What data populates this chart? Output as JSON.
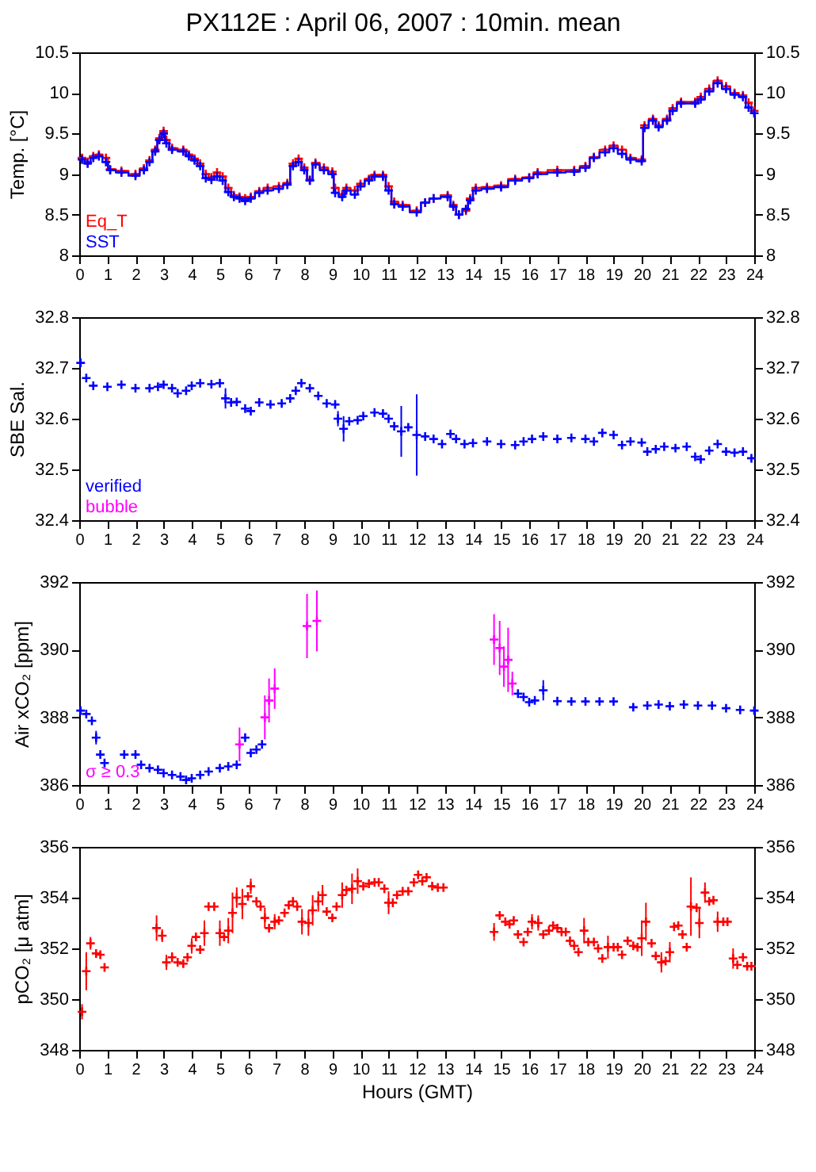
{
  "chart_data": [
    {
      "type": "step",
      "title": "PX112E : April 06, 2007 : 10min. mean",
      "ylabel": "Temp. [°C]",
      "xlim": [
        0,
        24
      ],
      "xticks": [
        0,
        1,
        2,
        3,
        4,
        5,
        6,
        7,
        8,
        9,
        10,
        11,
        12,
        13,
        14,
        15,
        16,
        17,
        18,
        19,
        20,
        21,
        22,
        23,
        24
      ],
      "ylim": [
        8,
        10.5
      ],
      "yticks": [
        8,
        8.5,
        9,
        9.5,
        10,
        10.5
      ],
      "y2lim": [
        8,
        10.5
      ],
      "y2ticks": [
        8,
        8.5,
        9,
        9.5,
        10,
        10.5
      ],
      "marker": "cross",
      "legend": "bottom left",
      "grid": false,
      "x": [
        0.1,
        0.3,
        0.5,
        0.7,
        0.95,
        1.1,
        1.5,
        2.0,
        2.3,
        2.5,
        2.7,
        2.85,
        3.0,
        3.1,
        3.3,
        3.7,
        3.9,
        4.1,
        4.3,
        4.5,
        4.7,
        4.9,
        5.1,
        5.3,
        5.5,
        5.7,
        5.9,
        6.1,
        6.4,
        6.7,
        7.1,
        7.4,
        7.6,
        7.8,
        8.0,
        8.2,
        8.4,
        8.7,
        9.0,
        9.1,
        9.35,
        9.5,
        9.8,
        10.0,
        10.3,
        10.5,
        10.8,
        11.0,
        11.2,
        11.5,
        12.0,
        12.3,
        12.6,
        13.1,
        13.3,
        13.5,
        13.75,
        13.9,
        14.1,
        14.5,
        15.0,
        15.5,
        16.0,
        16.3,
        17.0,
        17.6,
        18.0,
        18.3,
        18.7,
        19.0,
        19.3,
        19.6,
        20.0,
        20.1,
        20.4,
        20.6,
        20.9,
        21.1,
        21.4,
        21.9,
        22.1,
        22.4,
        22.7,
        23.0,
        23.3,
        23.6,
        23.8,
        24.0
      ],
      "series": [
        {
          "name": "Eq_T",
          "color": "#ff0000",
          "values": [
            9.2,
            9.15,
            9.22,
            9.24,
            9.2,
            9.06,
            9.04,
            9.0,
            9.07,
            9.17,
            9.3,
            9.44,
            9.53,
            9.42,
            9.32,
            9.3,
            9.24,
            9.19,
            9.13,
            9.0,
            8.96,
            9.02,
            8.97,
            8.83,
            8.74,
            8.72,
            8.7,
            8.72,
            8.79,
            8.83,
            8.85,
            8.89,
            9.13,
            9.19,
            9.08,
            8.93,
            9.14,
            9.08,
            9.03,
            8.83,
            8.75,
            8.83,
            8.8,
            8.88,
            8.94,
            8.99,
            8.99,
            8.85,
            8.66,
            8.62,
            8.55,
            8.65,
            8.7,
            8.74,
            8.62,
            8.5,
            8.55,
            8.7,
            8.83,
            8.84,
            8.86,
            8.94,
            8.96,
            9.02,
            9.05,
            9.05,
            9.1,
            9.21,
            9.3,
            9.35,
            9.3,
            9.2,
            9.18,
            9.6,
            9.68,
            9.6,
            9.68,
            9.81,
            9.89,
            9.89,
            9.95,
            10.05,
            10.15,
            10.08,
            10.0,
            9.97,
            9.88,
            9.78
          ]
        },
        {
          "name": "SST",
          "color": "#0000ff",
          "values": [
            9.18,
            9.13,
            9.2,
            9.22,
            9.15,
            9.05,
            9.02,
            8.98,
            9.05,
            9.15,
            9.28,
            9.42,
            9.5,
            9.38,
            9.3,
            9.28,
            9.22,
            9.17,
            9.1,
            8.95,
            8.93,
            8.97,
            8.92,
            8.78,
            8.72,
            8.7,
            8.67,
            8.7,
            8.77,
            8.8,
            8.82,
            8.87,
            9.1,
            9.15,
            9.05,
            8.92,
            9.12,
            9.05,
            9.0,
            8.77,
            8.72,
            8.8,
            8.75,
            8.85,
            8.92,
            8.97,
            8.97,
            8.8,
            8.63,
            8.6,
            8.53,
            8.65,
            8.7,
            8.72,
            8.6,
            8.5,
            8.57,
            8.68,
            8.8,
            8.82,
            8.84,
            8.92,
            8.95,
            9.0,
            9.02,
            9.03,
            9.08,
            9.2,
            9.27,
            9.32,
            9.25,
            9.18,
            9.16,
            9.57,
            9.66,
            9.58,
            9.66,
            9.78,
            9.87,
            9.87,
            9.92,
            10.02,
            10.12,
            10.05,
            9.98,
            9.95,
            9.82,
            9.75
          ]
        }
      ]
    },
    {
      "type": "scatter",
      "ylabel": "SBE Sal.",
      "xlim": [
        0,
        24
      ],
      "xticks": [
        0,
        1,
        2,
        3,
        4,
        5,
        6,
        7,
        8,
        9,
        10,
        11,
        12,
        13,
        14,
        15,
        16,
        17,
        18,
        19,
        20,
        21,
        22,
        23,
        24
      ],
      "ylim": [
        32.4,
        32.8
      ],
      "yticks": [
        32.4,
        32.5,
        32.6,
        32.7,
        32.8
      ],
      "y2lim": [
        32.4,
        32.8
      ],
      "y2ticks": [
        32.4,
        32.5,
        32.6,
        32.7,
        32.8
      ],
      "marker": "cross",
      "legend": "bottom left",
      "grid": false,
      "series": [
        {
          "name": "verified",
          "color": "#0000ff",
          "x": [
            0.05,
            0.25,
            0.5,
            1.0,
            1.5,
            2.0,
            2.5,
            2.8,
            3.0,
            3.3,
            3.5,
            3.8,
            4.0,
            4.3,
            4.7,
            5.0,
            5.2,
            5.4,
            5.6,
            5.9,
            6.1,
            6.4,
            6.8,
            7.2,
            7.5,
            7.7,
            7.9,
            8.2,
            8.5,
            8.8,
            9.1,
            9.2,
            9.4,
            9.6,
            9.9,
            10.1,
            10.5,
            10.8,
            11.0,
            11.2,
            11.45,
            11.7,
            12.0,
            12.3,
            12.6,
            12.9,
            13.2,
            13.4,
            13.7,
            14.0,
            14.5,
            15.0,
            15.5,
            15.8,
            16.1,
            16.5,
            17.0,
            17.5,
            18.0,
            18.3,
            18.6,
            19.0,
            19.3,
            19.6,
            20.0,
            20.2,
            20.5,
            20.8,
            21.2,
            21.6,
            21.9,
            22.1,
            22.4,
            22.7,
            23.0,
            23.3,
            23.6,
            23.9
          ],
          "values": [
            32.71,
            32.68,
            32.665,
            32.663,
            32.667,
            32.66,
            32.66,
            32.663,
            32.667,
            32.66,
            32.65,
            32.655,
            32.665,
            32.67,
            32.668,
            32.67,
            32.64,
            32.632,
            32.633,
            32.62,
            32.615,
            32.632,
            32.628,
            32.63,
            32.64,
            32.655,
            32.67,
            32.66,
            32.645,
            32.63,
            32.628,
            32.6,
            32.58,
            32.595,
            32.597,
            32.605,
            32.612,
            32.61,
            32.6,
            32.585,
            32.575,
            32.583,
            32.568,
            32.565,
            32.56,
            32.55,
            32.57,
            32.56,
            32.55,
            32.552,
            32.555,
            32.55,
            32.548,
            32.555,
            32.56,
            32.565,
            32.56,
            32.562,
            32.56,
            32.555,
            32.572,
            32.568,
            32.548,
            32.555,
            32.553,
            32.535,
            32.54,
            32.545,
            32.542,
            32.545,
            32.525,
            32.52,
            32.537,
            32.55,
            32.535,
            32.533,
            32.535,
            32.522
          ],
          "errors": [
            null,
            null,
            null,
            null,
            null,
            null,
            null,
            null,
            null,
            null,
            null,
            null,
            null,
            null,
            null,
            null,
            0.02,
            null,
            null,
            null,
            null,
            null,
            null,
            null,
            null,
            null,
            null,
            null,
            null,
            null,
            null,
            0.015,
            0.025,
            null,
            null,
            null,
            null,
            null,
            null,
            null,
            0.05,
            null,
            0.08,
            null,
            null,
            null,
            null,
            null,
            null,
            null,
            null,
            null,
            null,
            null,
            null,
            null,
            null,
            null,
            null,
            null,
            null,
            null,
            null,
            null,
            null,
            null,
            null,
            null,
            null,
            null,
            null,
            null,
            null,
            null,
            null,
            null,
            null,
            null
          ]
        },
        {
          "name": "bubble",
          "color": "#ff00ff"
        }
      ]
    },
    {
      "type": "scatter",
      "ylabel": "Air xCO₂ [ppm]",
      "xlim": [
        0,
        24
      ],
      "xticks": [
        0,
        1,
        2,
        3,
        4,
        5,
        6,
        7,
        8,
        9,
        10,
        11,
        12,
        13,
        14,
        15,
        16,
        17,
        18,
        19,
        20,
        21,
        22,
        23,
        24
      ],
      "ylim": [
        386,
        392
      ],
      "yticks": [
        386,
        388,
        390,
        392
      ],
      "y2lim": [
        386,
        392
      ],
      "y2ticks": [
        386,
        388,
        390,
        392
      ],
      "marker": "cross",
      "legend": "bottom left",
      "grid": false,
      "series": [
        {
          "color": "#0000ff",
          "x": [
            0.05,
            0.25,
            0.45,
            0.6,
            0.75,
            0.9,
            1.6,
            2.0,
            2.2,
            2.5,
            2.8,
            3.0,
            3.3,
            3.6,
            3.8,
            4.0,
            4.3,
            4.6,
            5.0,
            5.3,
            5.6,
            5.9,
            6.1,
            6.3,
            6.5,
            15.6,
            15.8,
            16.0,
            16.2,
            16.5,
            17.0,
            17.5,
            18.0,
            18.5,
            19.0,
            19.7,
            20.2,
            20.6,
            21.0,
            21.5,
            22.0,
            22.5,
            23.0,
            23.5,
            24.0
          ],
          "values": [
            388.2,
            388.1,
            387.9,
            387.4,
            386.9,
            386.65,
            386.9,
            386.9,
            386.6,
            386.5,
            386.45,
            386.35,
            386.3,
            386.25,
            386.15,
            386.2,
            386.3,
            386.4,
            386.5,
            386.55,
            386.6,
            387.4,
            386.95,
            387.05,
            387.2,
            388.7,
            388.6,
            388.45,
            388.5,
            388.8,
            388.48,
            388.47,
            388.47,
            388.47,
            388.47,
            388.3,
            388.35,
            388.38,
            388.33,
            388.38,
            388.35,
            388.35,
            388.27,
            388.22,
            388.2
          ],
          "errors": [
            null,
            null,
            null,
            0.2,
            null,
            null,
            null,
            null,
            null,
            null,
            null,
            null,
            null,
            null,
            null,
            null,
            null,
            null,
            null,
            null,
            null,
            null,
            null,
            null,
            null,
            null,
            null,
            null,
            null,
            0.3,
            null,
            null,
            null,
            null,
            null,
            null,
            null,
            null,
            null,
            null,
            null,
            null,
            null,
            null,
            null
          ]
        },
        {
          "name": "σ ≥ 0.3",
          "color": "#ff00ff",
          "x": [
            5.7,
            6.6,
            6.75,
            6.95,
            8.1,
            8.45,
            14.75,
            14.95,
            15.1,
            15.25,
            15.4
          ],
          "values": [
            387.2,
            388.0,
            388.5,
            388.85,
            390.7,
            390.85,
            390.3,
            390.05,
            389.5,
            389.7,
            389.0
          ],
          "errors": [
            0.5,
            0.65,
            0.65,
            0.6,
            0.95,
            0.9,
            0.75,
            0.8,
            0.6,
            0.95,
            0.35
          ]
        }
      ]
    },
    {
      "type": "scatter",
      "ylabel": "pCO₂ [μ atm]",
      "xlabel": "Hours (GMT)",
      "xlim": [
        0,
        24
      ],
      "xticks": [
        0,
        1,
        2,
        3,
        4,
        5,
        6,
        7,
        8,
        9,
        10,
        11,
        12,
        13,
        14,
        15,
        16,
        17,
        18,
        19,
        20,
        21,
        22,
        23,
        24
      ],
      "ylim": [
        348,
        356
      ],
      "yticks": [
        348,
        350,
        352,
        354,
        356
      ],
      "y2lim": [
        348,
        356
      ],
      "y2ticks": [
        348,
        350,
        352,
        354,
        356
      ],
      "marker": "cross",
      "grid": false,
      "series": [
        {
          "color": "#ff0000",
          "x": [
            0.1,
            0.25,
            0.4,
            0.6,
            0.75,
            0.9,
            2.75,
            2.95,
            3.1,
            3.3,
            3.5,
            3.7,
            3.85,
            4.0,
            4.15,
            4.3,
            4.45,
            4.6,
            4.8,
            5.0,
            5.15,
            5.3,
            5.45,
            5.6,
            5.8,
            6.0,
            6.1,
            6.3,
            6.45,
            6.6,
            6.75,
            6.95,
            7.1,
            7.3,
            7.45,
            7.6,
            7.75,
            7.92,
            8.15,
            8.3,
            8.5,
            8.65,
            8.8,
            9.0,
            9.15,
            9.35,
            9.5,
            9.7,
            9.9,
            10.1,
            10.3,
            10.5,
            10.65,
            10.85,
            11.0,
            11.15,
            11.3,
            11.5,
            11.7,
            11.9,
            12.05,
            12.2,
            12.35,
            12.55,
            12.75,
            12.95,
            14.75,
            14.95,
            15.15,
            15.3,
            15.45,
            15.6,
            15.8,
            15.95,
            16.1,
            16.32,
            16.5,
            16.7,
            16.85,
            17.0,
            17.15,
            17.3,
            17.45,
            17.6,
            17.75,
            17.95,
            18.1,
            18.3,
            18.45,
            18.6,
            18.8,
            19.0,
            19.15,
            19.3,
            19.5,
            19.7,
            19.85,
            20.0,
            20.15,
            20.35,
            20.5,
            20.7,
            20.85,
            21.0,
            21.15,
            21.3,
            21.45,
            21.6,
            21.75,
            21.95,
            22.05,
            22.25,
            22.4,
            22.55,
            22.7,
            22.9,
            23.05,
            23.25,
            23.4,
            23.6,
            23.75,
            23.9
          ],
          "values": [
            349.5,
            351.1,
            352.2,
            351.8,
            351.75,
            351.25,
            352.8,
            352.5,
            351.45,
            351.65,
            351.45,
            351.4,
            351.65,
            352.1,
            352.45,
            351.95,
            352.6,
            353.65,
            353.65,
            352.6,
            352.45,
            352.7,
            353.4,
            354.0,
            353.75,
            354.05,
            354.45,
            353.85,
            353.65,
            353.2,
            352.8,
            353.05,
            353.1,
            353.4,
            353.7,
            353.85,
            353.65,
            353.05,
            353.0,
            353.5,
            353.85,
            354.1,
            353.45,
            353.2,
            353.65,
            354.1,
            354.3,
            354.35,
            354.65,
            354.45,
            354.55,
            354.6,
            354.6,
            354.35,
            353.8,
            353.8,
            354.1,
            354.25,
            354.25,
            354.6,
            354.9,
            354.65,
            354.8,
            354.45,
            354.4,
            354.4,
            352.65,
            353.3,
            353.05,
            352.95,
            353.1,
            352.55,
            352.25,
            352.65,
            353.05,
            353.0,
            352.55,
            352.7,
            352.9,
            352.8,
            352.65,
            352.65,
            352.3,
            352.1,
            351.85,
            352.7,
            352.25,
            352.25,
            352.0,
            351.6,
            352.05,
            352.05,
            352.05,
            351.75,
            352.3,
            352.1,
            352.05,
            352.4,
            353.05,
            352.2,
            351.7,
            351.45,
            351.5,
            351.85,
            352.85,
            352.9,
            352.55,
            352.05,
            353.65,
            353.6,
            353.0,
            354.2,
            353.85,
            353.9,
            353.05,
            353.05,
            353.05,
            351.6,
            351.35,
            351.65,
            351.3,
            351.3
          ],
          "errors": [
            0.3,
            0.75,
            0.25,
            null,
            null,
            null,
            0.5,
            0.25,
            0.3,
            0.2,
            null,
            null,
            null,
            0.3,
            null,
            null,
            0.5,
            null,
            null,
            0.5,
            null,
            0.5,
            0.8,
            0.4,
            0.6,
            null,
            0.3,
            null,
            null,
            0.4,
            null,
            0.3,
            null,
            null,
            null,
            null,
            null,
            0.5,
            0.5,
            0.6,
            0.4,
            0.4,
            null,
            null,
            null,
            0.5,
            null,
            0.6,
            0.5,
            null,
            null,
            null,
            null,
            null,
            0.45,
            null,
            null,
            null,
            null,
            null,
            null,
            null,
            null,
            null,
            null,
            null,
            0.35,
            null,
            null,
            null,
            null,
            null,
            null,
            null,
            0.3,
            0.3,
            null,
            null,
            null,
            null,
            null,
            null,
            null,
            null,
            null,
            0.5,
            null,
            null,
            null,
            null,
            0.45,
            null,
            null,
            null,
            null,
            null,
            null,
            0.7,
            0.75,
            null,
            null,
            0.4,
            null,
            0.4,
            null,
            null,
            null,
            null,
            1.15,
            null,
            0.6,
            0.4,
            null,
            null,
            0.4,
            null,
            null,
            0.4,
            null,
            null,
            null,
            null
          ]
        }
      ]
    }
  ]
}
